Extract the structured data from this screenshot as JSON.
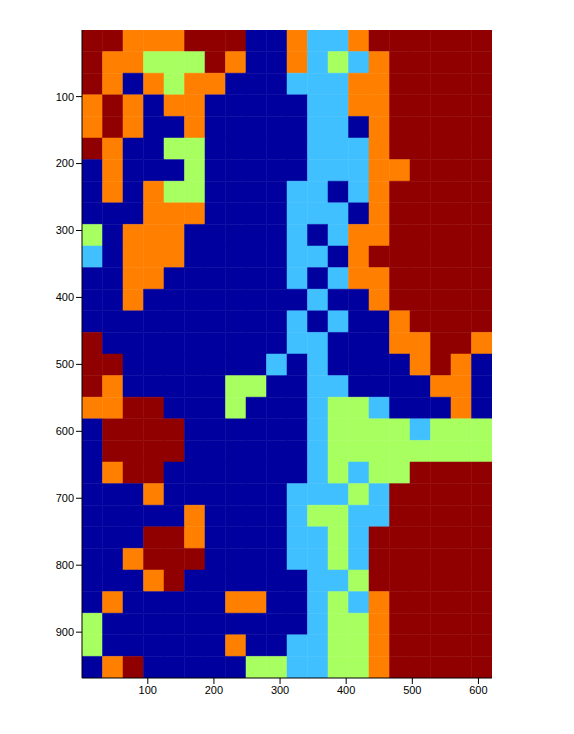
{
  "chart_data": {
    "type": "heatmap",
    "xlim": [
      0.5,
      620.5
    ],
    "ylim": [
      0.5,
      968.5
    ],
    "xticks": [
      100,
      200,
      300,
      400,
      500,
      600
    ],
    "yticks": [
      100,
      200,
      300,
      400,
      500,
      600,
      700,
      800,
      900
    ],
    "colors": [
      "#00009f",
      "#40c0ff",
      "#a8ff60",
      "#ff8000",
      "#900000"
    ],
    "z": [
      [
        5,
        5,
        4,
        4,
        4,
        5,
        5,
        5,
        1,
        1,
        4,
        2,
        2,
        4,
        5,
        5,
        5,
        5,
        5,
        5
      ],
      [
        5,
        4,
        4,
        3,
        3,
        3,
        5,
        4,
        1,
        1,
        4,
        2,
        3,
        2,
        4,
        5,
        5,
        5,
        5,
        5
      ],
      [
        5,
        4,
        1,
        4,
        3,
        4,
        4,
        1,
        1,
        1,
        2,
        2,
        2,
        4,
        4,
        5,
        5,
        5,
        5,
        5
      ],
      [
        4,
        5,
        4,
        1,
        4,
        4,
        1,
        1,
        1,
        1,
        1,
        2,
        2,
        4,
        4,
        5,
        5,
        5,
        5,
        5
      ],
      [
        4,
        5,
        4,
        1,
        1,
        4,
        1,
        1,
        1,
        1,
        1,
        2,
        2,
        1,
        4,
        5,
        5,
        5,
        5,
        5
      ],
      [
        5,
        4,
        1,
        1,
        3,
        3,
        1,
        1,
        1,
        1,
        1,
        2,
        2,
        2,
        4,
        5,
        5,
        5,
        5,
        5
      ],
      [
        1,
        4,
        1,
        1,
        1,
        3,
        1,
        1,
        1,
        1,
        1,
        2,
        2,
        2,
        4,
        4,
        5,
        5,
        5,
        5
      ],
      [
        1,
        4,
        1,
        4,
        3,
        3,
        1,
        1,
        1,
        1,
        2,
        2,
        1,
        2,
        4,
        5,
        5,
        5,
        5,
        5
      ],
      [
        1,
        1,
        1,
        4,
        4,
        4,
        1,
        1,
        1,
        1,
        2,
        2,
        2,
        1,
        4,
        5,
        5,
        5,
        5,
        5
      ],
      [
        3,
        1,
        4,
        4,
        4,
        1,
        1,
        1,
        1,
        1,
        2,
        1,
        2,
        4,
        4,
        5,
        5,
        5,
        5,
        5
      ],
      [
        2,
        1,
        4,
        4,
        4,
        1,
        1,
        1,
        1,
        1,
        2,
        2,
        1,
        4,
        5,
        5,
        5,
        5,
        5,
        5
      ],
      [
        1,
        1,
        4,
        4,
        1,
        1,
        1,
        1,
        1,
        1,
        2,
        1,
        2,
        4,
        4,
        5,
        5,
        5,
        5,
        5
      ],
      [
        1,
        1,
        4,
        1,
        1,
        1,
        1,
        1,
        1,
        1,
        1,
        2,
        1,
        1,
        4,
        5,
        5,
        5,
        5,
        5
      ],
      [
        1,
        1,
        1,
        1,
        1,
        1,
        1,
        1,
        1,
        1,
        2,
        1,
        2,
        1,
        1,
        4,
        5,
        5,
        5,
        5
      ],
      [
        5,
        1,
        1,
        1,
        1,
        1,
        1,
        1,
        1,
        1,
        2,
        2,
        1,
        1,
        1,
        4,
        4,
        5,
        5,
        4
      ],
      [
        5,
        5,
        1,
        1,
        1,
        1,
        1,
        1,
        1,
        2,
        1,
        2,
        1,
        1,
        1,
        1,
        4,
        5,
        4,
        1
      ],
      [
        5,
        4,
        1,
        1,
        1,
        1,
        1,
        3,
        3,
        1,
        1,
        2,
        2,
        1,
        1,
        1,
        1,
        4,
        4,
        1
      ],
      [
        4,
        4,
        5,
        5,
        1,
        1,
        1,
        3,
        1,
        1,
        1,
        2,
        3,
        3,
        2,
        1,
        1,
        1,
        4,
        1
      ],
      [
        1,
        5,
        5,
        5,
        5,
        1,
        1,
        1,
        1,
        1,
        1,
        2,
        3,
        3,
        3,
        3,
        2,
        3,
        3,
        3
      ],
      [
        1,
        5,
        5,
        5,
        5,
        1,
        1,
        1,
        1,
        1,
        1,
        2,
        3,
        3,
        3,
        3,
        3,
        3,
        3,
        3
      ],
      [
        1,
        4,
        5,
        5,
        1,
        1,
        1,
        1,
        1,
        1,
        1,
        2,
        3,
        2,
        3,
        3,
        5,
        5,
        5,
        5
      ],
      [
        1,
        1,
        1,
        4,
        1,
        1,
        1,
        1,
        1,
        1,
        2,
        2,
        2,
        3,
        2,
        5,
        5,
        5,
        5,
        5
      ],
      [
        1,
        1,
        1,
        1,
        1,
        4,
        1,
        1,
        1,
        1,
        2,
        3,
        3,
        2,
        2,
        5,
        5,
        5,
        5,
        5
      ],
      [
        1,
        1,
        1,
        5,
        5,
        4,
        1,
        1,
        1,
        1,
        2,
        2,
        3,
        2,
        5,
        5,
        5,
        5,
        5,
        5
      ],
      [
        1,
        1,
        4,
        5,
        5,
        5,
        1,
        1,
        1,
        1,
        2,
        2,
        3,
        2,
        5,
        5,
        5,
        5,
        5,
        5
      ],
      [
        1,
        1,
        1,
        4,
        5,
        1,
        1,
        1,
        1,
        1,
        1,
        2,
        2,
        3,
        5,
        5,
        5,
        5,
        5,
        5
      ],
      [
        1,
        4,
        1,
        1,
        1,
        1,
        1,
        4,
        4,
        1,
        1,
        2,
        3,
        2,
        4,
        5,
        5,
        5,
        5,
        5
      ],
      [
        3,
        1,
        1,
        1,
        1,
        1,
        1,
        1,
        1,
        1,
        1,
        2,
        3,
        3,
        4,
        5,
        5,
        5,
        5,
        5
      ],
      [
        3,
        1,
        1,
        1,
        1,
        1,
        1,
        4,
        1,
        1,
        2,
        2,
        3,
        3,
        4,
        5,
        5,
        5,
        5,
        5
      ],
      [
        1,
        4,
        5,
        1,
        1,
        1,
        1,
        1,
        3,
        3,
        2,
        2,
        3,
        3,
        4,
        5,
        5,
        5,
        5,
        5
      ]
    ]
  }
}
